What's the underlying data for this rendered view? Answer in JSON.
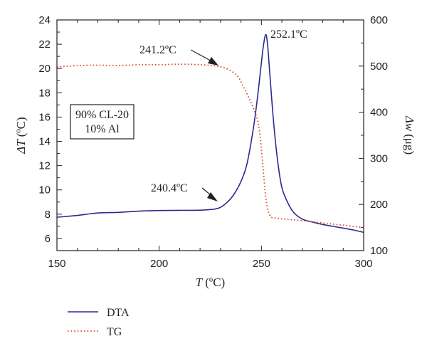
{
  "colors": {
    "dta": "#2b2b8f",
    "tg": "#e0452a",
    "axis": "#222222"
  },
  "chart_data": {
    "type": "line",
    "xlabel_symbol": "T",
    "xlabel_unit": "(ºC)",
    "ylabel_left_symbol": "ΔT",
    "ylabel_left_unit": "(ºC)",
    "ylabel_right_symbol": "Δw",
    "ylabel_right_unit": "(μg)",
    "xlim": [
      150,
      300
    ],
    "ylim_left": [
      5,
      24
    ],
    "ylim_right": [
      100,
      600
    ],
    "x_ticks": [
      150,
      200,
      250,
      300
    ],
    "y_left_ticks": [
      6,
      8,
      10,
      12,
      14,
      16,
      18,
      20,
      22,
      24
    ],
    "y_right_ticks": [
      100,
      200,
      300,
      400,
      500,
      600
    ],
    "sample_box": [
      "90% CL-20",
      "10% Al"
    ],
    "annotations": [
      {
        "text": "252.1ºC"
      },
      {
        "text": "241.2ºC"
      },
      {
        "text": "240.4ºC"
      }
    ],
    "legend_position": "bottom-left",
    "series": [
      {
        "name": "DTA",
        "axis": "left",
        "style": "solid",
        "x": [
          150,
          160,
          170,
          180,
          190,
          200,
          210,
          220,
          228,
          232,
          236,
          240,
          243,
          246,
          248,
          250,
          251,
          252.1,
          253,
          254,
          256,
          258,
          260,
          263,
          266,
          270,
          275,
          280,
          285,
          290,
          295,
          300
        ],
        "y": [
          7.75,
          7.9,
          8.1,
          8.15,
          8.25,
          8.3,
          8.32,
          8.33,
          8.45,
          8.8,
          9.5,
          10.7,
          12.2,
          15.0,
          17.5,
          20.5,
          21.9,
          22.8,
          22.0,
          19.8,
          15.5,
          12.3,
          10.2,
          8.9,
          8.1,
          7.6,
          7.35,
          7.15,
          7.0,
          6.85,
          6.7,
          6.5
        ]
      },
      {
        "name": "TG",
        "axis": "right",
        "style": "dotted",
        "x": [
          150,
          160,
          170,
          180,
          190,
          200,
          210,
          220,
          228,
          232,
          236,
          239,
          241.2,
          244,
          246,
          248,
          249,
          250,
          251,
          252,
          253,
          254,
          255,
          258,
          262,
          270,
          280,
          290,
          300
        ],
        "y": [
          498,
          501,
          502,
          501,
          503,
          503,
          504,
          503,
          500,
          496,
          487,
          474,
          455,
          430,
          410,
          385,
          360,
          320,
          270,
          220,
          190,
          178,
          172,
          170,
          168,
          165,
          160,
          155,
          150
        ]
      }
    ]
  }
}
